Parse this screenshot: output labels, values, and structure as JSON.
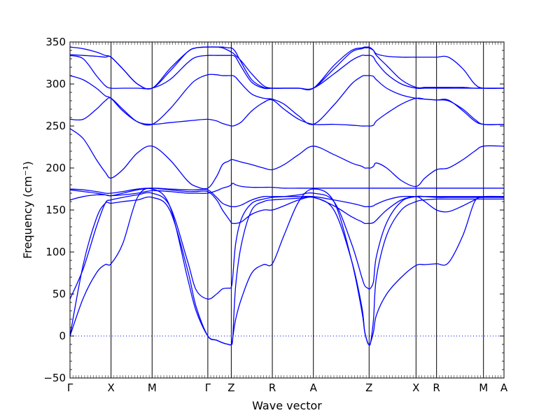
{
  "chart_data": {
    "type": "line",
    "title": "",
    "xlabel": "Wave vector",
    "ylabel": "Frequency (cm⁻¹)",
    "ylim": [
      -50,
      350
    ],
    "yticks": [
      -50,
      0,
      50,
      100,
      150,
      200,
      250,
      300,
      350
    ],
    "xlim": [
      0,
      14.8
    ],
    "high_symmetry_points": [
      {
        "label": "Γ",
        "x": 0
      },
      {
        "label": "X",
        "x": 1.4
      },
      {
        "label": "M",
        "x": 2.8
      },
      {
        "label": "Γ",
        "x": 4.7
      },
      {
        "label": "Z",
        "x": 5.5
      },
      {
        "label": "R",
        "x": 6.9
      },
      {
        "label": "A",
        "x": 8.3
      },
      {
        "label": "Z",
        "x": 10.2
      },
      {
        "label": "X",
        "x": 11.8
      },
      {
        "label": "R",
        "x": 12.5
      },
      {
        "label": "M",
        "x": 14.1
      },
      {
        "label": "A",
        "x": 14.8
      }
    ],
    "zero_line": {
      "y": 0,
      "style": "dotted"
    },
    "line_color": "#0000ff",
    "series": [
      {
        "x": [
          0,
          0.45,
          0.9,
          1.2,
          1.4,
          1.8,
          2.3,
          2.8,
          3.4,
          4.0,
          4.3,
          4.7,
          5.0,
          5.2,
          5.4,
          5.5,
          5.55,
          5.65,
          5.85,
          6.2,
          6.6,
          6.9,
          7.3,
          7.8,
          8.3,
          9.0,
          9.6,
          9.95,
          10.05,
          10.15,
          10.2,
          10.25,
          10.35,
          10.45,
          10.8,
          11.3,
          11.8,
          12.1,
          12.5,
          12.9,
          13.4,
          13.8,
          14.1,
          14.8
        ],
        "y": [
          0,
          45,
          75,
          85,
          86,
          110,
          165,
          175,
          155,
          70,
          30,
          0,
          -5,
          -8,
          -10,
          -10,
          -2,
          20,
          45,
          75,
          85,
          86,
          120,
          160,
          175,
          160,
          90,
          30,
          5,
          -8,
          -10,
          -8,
          5,
          25,
          50,
          70,
          84,
          85,
          86,
          87,
          120,
          160,
          165,
          165
        ]
      },
      {
        "x": [
          0,
          0.45,
          0.9,
          1.2,
          1.4,
          1.8,
          2.3,
          2.8,
          3.4,
          4.0,
          4.3,
          4.7,
          5.0,
          5.2,
          5.4,
          5.5,
          5.55,
          5.65,
          5.85,
          6.2,
          6.6,
          6.9,
          7.3,
          7.8,
          8.3,
          9.0,
          9.6,
          9.95,
          10.05,
          10.15,
          10.2,
          10.25,
          10.35,
          10.45,
          10.8,
          11.3,
          11.8,
          12.1,
          12.5,
          12.9,
          13.4,
          13.8,
          14.1,
          14.8
        ],
        "y": [
          0,
          85,
          140,
          158,
          158,
          160,
          162,
          165,
          150,
          80,
          35,
          0,
          -5,
          -8,
          -10,
          -10,
          -2,
          60,
          110,
          150,
          160,
          162,
          163,
          164,
          165,
          150,
          90,
          35,
          5,
          -8,
          -10,
          -8,
          20,
          70,
          120,
          150,
          160,
          162,
          163,
          163,
          163,
          163,
          163,
          163
        ]
      },
      {
        "x": [
          0,
          0.45,
          0.9,
          1.2,
          1.4,
          1.8,
          2.3,
          2.8,
          3.4,
          4.0,
          4.3,
          4.7,
          5.0,
          5.2,
          5.4,
          5.5,
          5.55,
          5.65,
          5.85,
          6.2,
          6.6,
          6.9,
          7.3,
          7.8,
          8.3,
          9.0,
          9.6,
          9.95,
          10.05,
          10.15,
          10.2,
          10.25,
          10.35,
          10.45,
          10.8,
          11.3,
          11.8,
          12.1,
          12.5,
          12.9,
          13.4,
          13.8,
          14.1,
          14.8
        ],
        "y": [
          44,
          80,
          130,
          158,
          162,
          165,
          168,
          170,
          155,
          90,
          55,
          44,
          50,
          56,
          57,
          58,
          70,
          110,
          140,
          158,
          163,
          165,
          166,
          168,
          170,
          160,
          110,
          70,
          60,
          57,
          56,
          57,
          65,
          95,
          135,
          160,
          166,
          166,
          165,
          165,
          165,
          165,
          165,
          165
        ]
      },
      {
        "x": [
          0,
          0.45,
          0.9,
          1.2,
          1.4,
          1.8,
          2.3,
          2.8,
          3.4,
          4.0,
          4.3,
          4.7,
          5.0,
          5.2,
          5.4,
          5.5,
          5.55,
          5.65,
          5.85,
          6.2,
          6.6,
          6.9,
          7.3,
          7.8,
          8.3,
          9.0,
          9.6,
          9.95,
          10.05,
          10.15,
          10.2,
          10.25,
          10.35,
          10.45,
          10.8,
          11.3,
          11.8,
          12.1,
          12.5,
          12.9,
          13.4,
          13.8,
          14.1,
          14.8
        ],
        "y": [
          162,
          166,
          168,
          168,
          167,
          168,
          170,
          173,
          172,
          170,
          170,
          170,
          173,
          176,
          178,
          180,
          182,
          180,
          178,
          177,
          177,
          177,
          176,
          176,
          176,
          176,
          176,
          176,
          176,
          176,
          176,
          176,
          176,
          176,
          176,
          176,
          176,
          176,
          176,
          176,
          176,
          176,
          176,
          176
        ]
      },
      {
        "x": [
          0,
          0.45,
          0.9,
          1.2,
          1.4,
          1.8,
          2.3,
          2.8,
          3.4,
          4.0,
          4.3,
          4.7,
          5.0,
          5.2,
          5.4,
          5.5,
          5.55,
          5.65,
          5.85,
          6.2,
          6.6,
          6.9,
          7.3,
          7.8,
          8.3,
          9.0,
          9.6,
          9.95,
          10.05,
          10.15,
          10.2,
          10.25,
          10.35,
          10.45,
          10.8,
          11.3,
          11.8,
          12.1,
          12.5,
          12.9,
          13.4,
          13.8,
          14.1,
          14.8
        ],
        "y": [
          174,
          172,
          170,
          168,
          167,
          170,
          174,
          176,
          175,
          174,
          174,
          174,
          165,
          158,
          155,
          154,
          154,
          154,
          156,
          162,
          166,
          166,
          166,
          166,
          166,
          162,
          158,
          155,
          154,
          154,
          154,
          154,
          155,
          157,
          162,
          166,
          166,
          166,
          166,
          166,
          166,
          166,
          166,
          166
        ]
      },
      {
        "x": [
          0,
          0.45,
          0.9,
          1.2,
          1.4,
          1.8,
          2.3,
          2.8,
          3.4,
          4.0,
          4.3,
          4.7,
          5.0,
          5.2,
          5.4,
          5.5,
          5.55,
          5.65,
          5.85,
          6.2,
          6.6,
          6.9,
          7.3,
          7.8,
          8.3,
          9.0,
          9.6,
          9.95,
          10.05,
          10.15,
          10.2,
          10.25,
          10.35,
          10.45,
          10.8,
          11.3,
          11.8,
          12.1,
          12.5,
          12.9,
          13.4,
          13.8,
          14.1,
          14.8
        ],
        "y": [
          175,
          174,
          172,
          170,
          170,
          172,
          175,
          176,
          174,
          172,
          172,
          172,
          162,
          150,
          140,
          135,
          134,
          134,
          136,
          145,
          150,
          150,
          155,
          162,
          165,
          155,
          142,
          136,
          134,
          134,
          134,
          134,
          135,
          138,
          150,
          162,
          166,
          160,
          150,
          148,
          155,
          162,
          166,
          166
        ]
      },
      {
        "x": [
          0,
          0.45,
          0.9,
          1.2,
          1.4,
          1.8,
          2.3,
          2.8,
          3.4,
          4.0,
          4.3,
          4.7,
          5.0,
          5.2,
          5.4,
          5.5,
          5.55,
          5.65,
          5.85,
          6.2,
          6.6,
          6.9,
          7.3,
          7.8,
          8.3,
          9.0,
          9.6,
          9.95,
          10.05,
          10.15,
          10.2,
          10.25,
          10.35,
          10.45,
          10.8,
          11.3,
          11.8,
          12.1,
          12.5,
          12.9,
          13.4,
          13.8,
          14.1,
          14.8
        ],
        "y": [
          247,
          235,
          210,
          195,
          188,
          198,
          218,
          226,
          210,
          185,
          178,
          176,
          190,
          204,
          208,
          210,
          210,
          209,
          207,
          204,
          200,
          198,
          204,
          216,
          226,
          216,
          206,
          202,
          200,
          200,
          200,
          200,
          202,
          206,
          200,
          185,
          178,
          188,
          198,
          200,
          210,
          220,
          226,
          226
        ]
      },
      {
        "x": [
          0,
          0.45,
          0.9,
          1.2,
          1.4,
          1.8,
          2.3,
          2.8,
          3.4,
          4.0,
          4.3,
          4.7,
          5.0,
          5.2,
          5.4,
          5.5,
          5.55,
          5.65,
          5.85,
          6.2,
          6.6,
          6.9,
          7.3,
          7.8,
          8.3,
          9.0,
          9.6,
          9.95,
          10.05,
          10.15,
          10.2,
          10.25,
          10.35,
          10.45,
          10.8,
          11.3,
          11.8,
          12.1,
          12.5,
          12.9,
          13.4,
          13.8,
          14.1,
          14.8
        ],
        "y": [
          258,
          258,
          270,
          280,
          283,
          270,
          255,
          252,
          254,
          256,
          257,
          258,
          256,
          253,
          251,
          250,
          250,
          251,
          255,
          268,
          278,
          281,
          270,
          258,
          252,
          252,
          251,
          250,
          250,
          250,
          250,
          250,
          251,
          256,
          265,
          276,
          283,
          282,
          281,
          280,
          270,
          258,
          252,
          252
        ]
      },
      {
        "x": [
          0,
          0.45,
          0.9,
          1.2,
          1.4,
          1.8,
          2.3,
          2.8,
          3.4,
          4.0,
          4.3,
          4.7,
          5.0,
          5.2,
          5.4,
          5.5,
          5.55,
          5.65,
          5.85,
          6.2,
          6.6,
          6.9,
          7.3,
          7.8,
          8.3,
          9.0,
          9.6,
          9.95,
          10.05,
          10.15,
          10.2,
          10.25,
          10.35,
          10.45,
          10.8,
          11.3,
          11.8,
          12.1,
          12.5,
          12.9,
          13.4,
          13.8,
          14.1,
          14.8
        ],
        "y": [
          310,
          305,
          295,
          286,
          283,
          268,
          255,
          252,
          270,
          295,
          305,
          311,
          311,
          310,
          310,
          310,
          310,
          308,
          300,
          288,
          283,
          282,
          276,
          262,
          252,
          275,
          300,
          309,
          310,
          310,
          310,
          310,
          309,
          305,
          295,
          287,
          283,
          282,
          281,
          281,
          268,
          256,
          252,
          252
        ]
      },
      {
        "x": [
          0,
          0.45,
          0.9,
          1.2,
          1.4,
          1.8,
          2.3,
          2.8,
          3.4,
          4.0,
          4.3,
          4.7,
          5.0,
          5.2,
          5.4,
          5.5,
          5.55,
          5.65,
          5.85,
          6.2,
          6.6,
          6.9,
          7.3,
          7.8,
          8.3,
          9.0,
          9.6,
          9.95,
          10.05,
          10.15,
          10.2,
          10.25,
          10.35,
          10.45,
          10.8,
          11.3,
          11.8,
          12.1,
          12.5,
          12.9,
          13.4,
          13.8,
          14.1,
          14.8
        ],
        "y": [
          334,
          330,
          310,
          298,
          295,
          295,
          295,
          295,
          305,
          325,
          332,
          334,
          334,
          334,
          334,
          334,
          334,
          332,
          320,
          302,
          295,
          295,
          295,
          295,
          295,
          312,
          328,
          334,
          334,
          334,
          334,
          334,
          332,
          326,
          312,
          300,
          295,
          295,
          295,
          295,
          295,
          295,
          295,
          295
        ]
      },
      {
        "x": [
          0,
          0.45,
          0.9,
          1.2,
          1.4,
          1.8,
          2.3,
          2.8,
          3.4,
          4.0,
          4.3,
          4.7,
          5.0,
          5.2,
          5.4,
          5.5,
          5.55,
          5.65,
          5.85,
          6.2,
          6.6,
          6.9,
          7.3,
          7.8,
          8.3,
          9.0,
          9.6,
          9.95,
          10.05,
          10.15,
          10.2,
          10.25,
          10.35,
          10.45,
          10.8,
          11.3,
          11.8,
          12.1,
          12.5,
          12.9,
          13.4,
          13.8,
          14.1,
          14.8
        ],
        "y": [
          335,
          334,
          333,
          332,
          332,
          318,
          300,
          295,
          315,
          338,
          343,
          344,
          344,
          343,
          340,
          338,
          337,
          334,
          327,
          312,
          298,
          295,
          295,
          295,
          295,
          318,
          338,
          342,
          343,
          343,
          343,
          342,
          340,
          336,
          333,
          332,
          332,
          332,
          332,
          332,
          318,
          300,
          295,
          295
        ]
      },
      {
        "x": [
          0,
          0.45,
          0.9,
          1.2,
          1.4,
          1.8,
          2.3,
          2.8,
          3.4,
          4.0,
          4.3,
          4.7,
          5.0,
          5.2,
          5.4,
          5.5,
          5.55,
          5.65,
          5.85,
          6.2,
          6.6,
          6.9,
          7.3,
          7.8,
          8.3,
          9.0,
          9.6,
          9.95,
          10.05,
          10.15,
          10.2,
          10.25,
          10.35,
          10.45,
          10.8,
          11.3,
          11.8,
          12.1,
          12.5,
          12.9,
          13.4,
          13.8,
          14.1,
          14.8
        ],
        "y": [
          344,
          342,
          338,
          334,
          332,
          318,
          300,
          295,
          318,
          338,
          343,
          344,
          344,
          344,
          343,
          343,
          342,
          338,
          325,
          305,
          296,
          295,
          295,
          295,
          295,
          322,
          340,
          343,
          344,
          344,
          344,
          343,
          340,
          334,
          322,
          305,
          296,
          296,
          296,
          296,
          296,
          295,
          295,
          295
        ]
      }
    ]
  }
}
